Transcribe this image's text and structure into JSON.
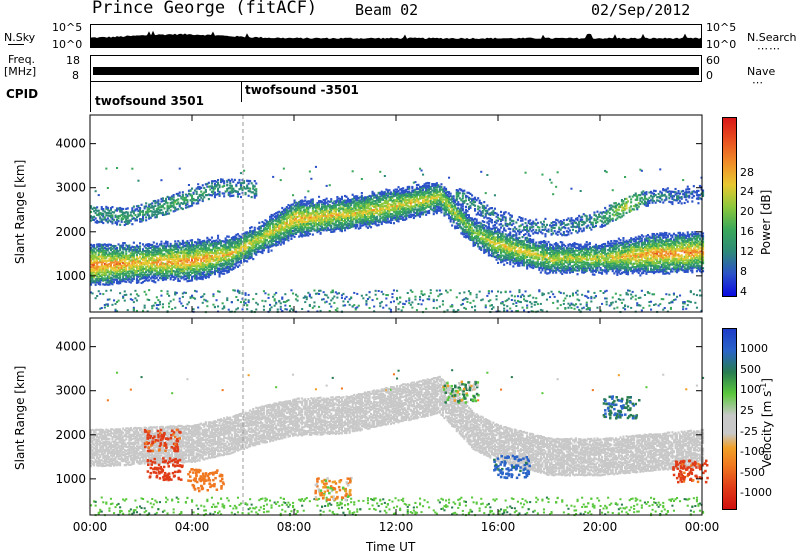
{
  "header": {
    "station": "Prince George (fitACF)",
    "beam": "Beam 02",
    "date": "02/Sep/2012"
  },
  "top_strip": {
    "nsky_label": "N.Sky",
    "nsearch_label": "N.Search",
    "noise_ticks_left": [
      "10^5",
      "10^0"
    ],
    "noise_ticks_right": [
      "10^5",
      "10^0"
    ],
    "freq_label_line1": "Freq.",
    "freq_label_line2": "[MHz]",
    "freq_ticks": [
      "18",
      "8"
    ],
    "nave_label": "Nave",
    "nave_ticks": [
      "60",
      "0"
    ],
    "cpid_label": "CPID",
    "cpid_segments": [
      "twofsound 3501",
      "twofsound -3501"
    ]
  },
  "colors": {
    "power_scale": [
      "#0a0ae0",
      "#2c52c8",
      "#2e8a78",
      "#3aa85a",
      "#8cc83c",
      "#e8c830",
      "#f08c28",
      "#e85020",
      "#d81818"
    ],
    "velocity_scale": [
      "#1e3cc8",
      "#2a64c8",
      "#287c50",
      "#5ac83c",
      "#c8c8c8",
      "#c8c8c8",
      "#f0a028",
      "#f07820",
      "#e03c18",
      "#d01010"
    ],
    "ground_scatter": "#c8c8c8"
  },
  "chart_data": [
    {
      "type": "heatmap",
      "name": "power",
      "ylabel": "Slant Range [km]",
      "xlabel": "",
      "colorbar_label": "Power [dB]",
      "colorbar_ticks": [
        "28",
        "24",
        "20",
        "16",
        "12",
        "8",
        "4"
      ],
      "x_ticks": [
        "00:00",
        "04:00",
        "08:00",
        "12:00",
        "16:00",
        "20:00",
        "00:00"
      ],
      "y_ticks": [
        "4000",
        "3000",
        "2000",
        "1000"
      ],
      "xlim_hours": [
        0,
        24
      ],
      "ylim_km": [
        180,
        4650
      ],
      "cpid_change_hour": 6,
      "main_band": {
        "hours": [
          0,
          2,
          4,
          5.5,
          6.5,
          8,
          10,
          12,
          13.7,
          15,
          16,
          18,
          20,
          22,
          24
        ],
        "range_km": [
          1250,
          1300,
          1350,
          1500,
          1800,
          2300,
          2400,
          2600,
          2800,
          2000,
          1700,
          1400,
          1400,
          1500,
          1550
        ],
        "peak_power_db": [
          26,
          22,
          24,
          20,
          18,
          22,
          20,
          20,
          18,
          16,
          20,
          18,
          18,
          24,
          24
        ]
      },
      "upper_band": {
        "hours": [
          0,
          1.5,
          3,
          5,
          14.5,
          16,
          17,
          18.5,
          20,
          21,
          22,
          24
        ],
        "range_km": [
          2400,
          2350,
          2600,
          3000,
          2800,
          2300,
          2100,
          2100,
          2300,
          2600,
          2800,
          2850
        ],
        "peak_power_db": [
          10,
          10,
          12,
          10,
          10,
          8,
          8,
          8,
          10,
          18,
          8,
          6
        ]
      }
    },
    {
      "type": "heatmap",
      "name": "velocity",
      "ylabel": "Slant Range [km]",
      "xlabel": "Time UT",
      "colorbar_label": "Velocity [m s^-1]",
      "colorbar_ticks": [
        "1000",
        "500",
        "100",
        "25",
        "-25",
        "-100",
        "-500",
        "-1000"
      ],
      "x_ticks": [
        "00:00",
        "04:00",
        "08:00",
        "12:00",
        "16:00",
        "20:00",
        "00:00"
      ],
      "y_ticks": [
        "4000",
        "3000",
        "2000",
        "1000"
      ],
      "xlim_hours": [
        0,
        24
      ],
      "ylim_km": [
        180,
        4650
      ],
      "ground_scatter_band": {
        "hours": [
          0,
          2,
          4,
          5.5,
          6.5,
          8,
          10,
          12,
          13.7,
          15,
          16,
          18,
          20,
          22,
          24
        ],
        "range_km": [
          1700,
          1750,
          1800,
          2000,
          2200,
          2400,
          2450,
          2700,
          2900,
          2100,
          1800,
          1500,
          1500,
          1600,
          1700
        ]
      },
      "ionospheric_patches": [
        {
          "hour": 2.9,
          "range_km": 1250,
          "velocity": -800
        },
        {
          "hour": 2.8,
          "range_km": 1900,
          "velocity": -600
        },
        {
          "hour": 4.5,
          "range_km": 1000,
          "velocity": -300
        },
        {
          "hour": 20.8,
          "range_km": 2650,
          "velocity": 500
        },
        {
          "hour": 16.5,
          "range_km": 1300,
          "velocity": 600
        },
        {
          "hour": 23.5,
          "range_km": 1200,
          "velocity": -600
        },
        {
          "hour": 9.5,
          "range_km": 800,
          "velocity": -100
        },
        {
          "hour": 14.5,
          "range_km": 3000,
          "velocity": 100
        }
      ]
    }
  ]
}
